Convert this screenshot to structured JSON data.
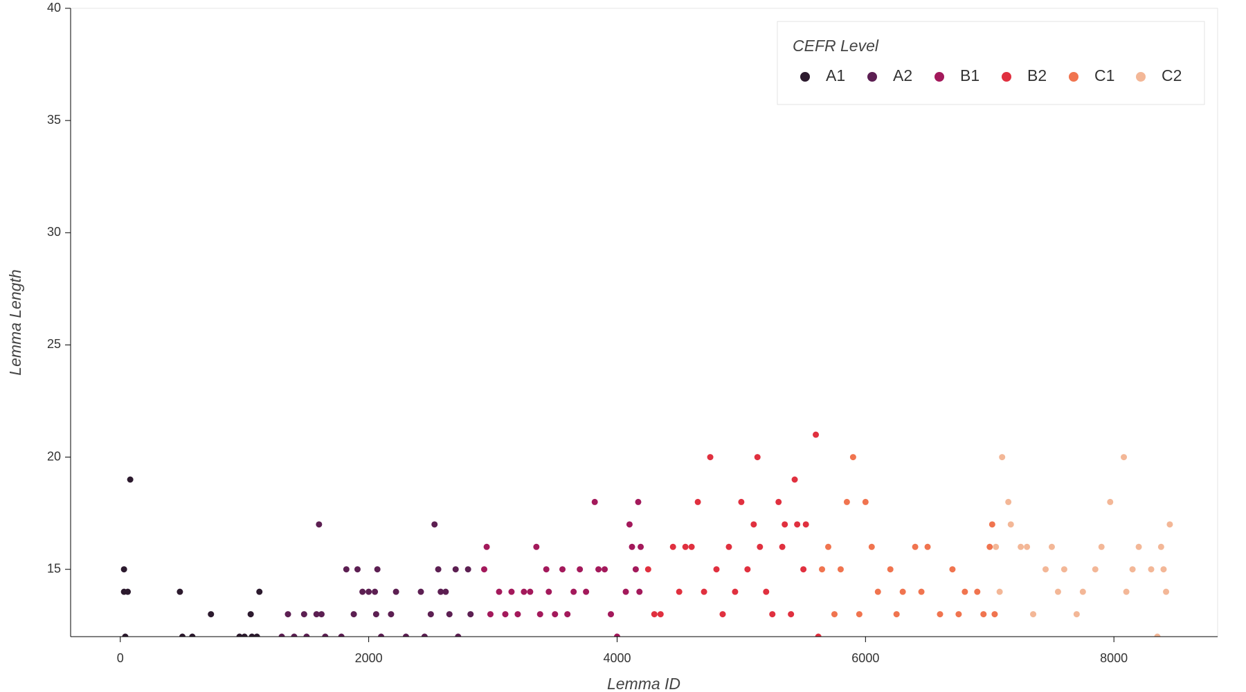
{
  "chart_data": {
    "type": "scatter",
    "x_label": "Lemma ID",
    "y_label": "Lemma Length",
    "legend_title": "CEFR Level",
    "legend": "top-right",
    "xlim": [
      -400,
      8835
    ],
    "ylim": [
      12,
      40
    ],
    "xticks": [
      0,
      2000,
      4000,
      6000,
      8000
    ],
    "yticks": [
      15,
      20,
      25,
      30,
      35,
      40
    ],
    "series": [
      {
        "name": "A1",
        "color": "#2c1a2e",
        "x": [
          30,
          30,
          60,
          80,
          40,
          480,
          500,
          580,
          730,
          960,
          1000,
          1050,
          1060,
          1120,
          1100
        ],
        "values": [
          15,
          14,
          14,
          19,
          12,
          14,
          12,
          12,
          13,
          12,
          12,
          13,
          12,
          14,
          12
        ]
      },
      {
        "name": "A2",
        "color": "#5c1f52",
        "x": [
          1300,
          1350,
          1400,
          1480,
          1500,
          1580,
          1600,
          1620,
          1650,
          1780,
          1820,
          1880,
          1910,
          1950,
          2000,
          2050,
          2070,
          2060,
          2100,
          2180,
          2220,
          2300,
          2420,
          2450,
          2500,
          2530,
          2560,
          2580,
          2620,
          2650,
          2700,
          2720,
          2800,
          2820
        ],
        "values": [
          12,
          13,
          12,
          13,
          12,
          13,
          17,
          13,
          12,
          12,
          15,
          13,
          15,
          14,
          14,
          14,
          15,
          13,
          12,
          13,
          14,
          12,
          14,
          12,
          13,
          17,
          15,
          14,
          14,
          13,
          15,
          12,
          15,
          13
        ]
      },
      {
        "name": "B1",
        "color": "#a3195b",
        "x": [
          2930,
          2950,
          2980,
          3050,
          3100,
          3150,
          3200,
          3250,
          3300,
          3350,
          3380,
          3430,
          3450,
          3500,
          3560,
          3600,
          3650,
          3700,
          3750,
          3820,
          3850,
          3900,
          3950,
          4000,
          4070,
          4100,
          4120,
          4150,
          4170,
          4190,
          4180
        ],
        "values": [
          15,
          16,
          13,
          14,
          13,
          14,
          13,
          14,
          14,
          16,
          13,
          15,
          14,
          13,
          15,
          13,
          14,
          15,
          14,
          18,
          15,
          15,
          13,
          12,
          14,
          17,
          16,
          15,
          18,
          16,
          14
        ]
      },
      {
        "name": "B2",
        "color": "#e0303f",
        "x": [
          4250,
          4300,
          4350,
          4450,
          4500,
          4550,
          4600,
          4650,
          4700,
          4750,
          4800,
          4850,
          4900,
          4950,
          5000,
          5050,
          5100,
          5130,
          5150,
          5200,
          5250,
          5300,
          5330,
          5350,
          5400,
          5430,
          5450,
          5500,
          5520,
          5600,
          5620
        ],
        "values": [
          15,
          13,
          13,
          16,
          14,
          16,
          16,
          18,
          14,
          20,
          15,
          13,
          16,
          14,
          18,
          15,
          17,
          20,
          16,
          14,
          13,
          18,
          16,
          17,
          13,
          19,
          17,
          15,
          17,
          21,
          12
        ]
      },
      {
        "name": "C1",
        "color": "#f0744f",
        "x": [
          5650,
          5700,
          5750,
          5800,
          5850,
          5900,
          5950,
          6000,
          6050,
          6100,
          6200,
          6250,
          6300,
          6400,
          6450,
          6500,
          6600,
          6700,
          6750,
          6800,
          6900,
          6950,
          7000,
          7020,
          7040
        ],
        "values": [
          15,
          16,
          13,
          15,
          18,
          20,
          13,
          18,
          16,
          14,
          15,
          13,
          14,
          16,
          14,
          16,
          13,
          15,
          13,
          14,
          14,
          13,
          16,
          17,
          13
        ]
      },
      {
        "name": "C2",
        "color": "#f3b797",
        "x": [
          7050,
          7080,
          7100,
          7150,
          7170,
          7250,
          7300,
          7350,
          7450,
          7500,
          7550,
          7600,
          7700,
          7750,
          7850,
          7900,
          7970,
          8080,
          8100,
          8150,
          8200,
          8300,
          8380,
          8400,
          8450,
          8420,
          8350
        ],
        "values": [
          16,
          14,
          20,
          18,
          17,
          16,
          16,
          13,
          15,
          16,
          14,
          15,
          13,
          14,
          15,
          16,
          18,
          20,
          14,
          15,
          16,
          15,
          16,
          15,
          17,
          14,
          12
        ]
      }
    ]
  }
}
